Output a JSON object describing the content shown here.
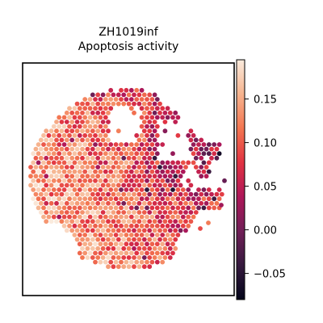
{
  "chart_data": {
    "type": "scatter",
    "title": "ZH1019inf",
    "subtitle": "Apoptosis activity",
    "xlabel": "",
    "ylabel": "",
    "grid": false,
    "marker": "hexagon",
    "colormap": "rocket",
    "colorbar": {
      "range": [
        -0.08,
        0.195
      ],
      "ticks": [
        -0.05,
        0.0,
        0.05,
        0.1,
        0.15
      ],
      "tick_labels": [
        "−0.05",
        "0.00",
        "0.05",
        "0.10",
        "0.15"
      ]
    },
    "colormap_stops": [
      "#03051a",
      "#35193e",
      "#701f57",
      "#ae1759",
      "#e13342",
      "#f37651",
      "#f6b48f",
      "#faebdd"
    ],
    "tissue_region": "roughly circular spot layout, dense on the left, sparse with gaps at upper right",
    "value_summary": {
      "left_lower_region": "high values (0.10 to 0.17)",
      "upper_right_region": "mixed, many low values (0.00 to 0.07)",
      "overall_median_estimate": 0.1
    }
  }
}
